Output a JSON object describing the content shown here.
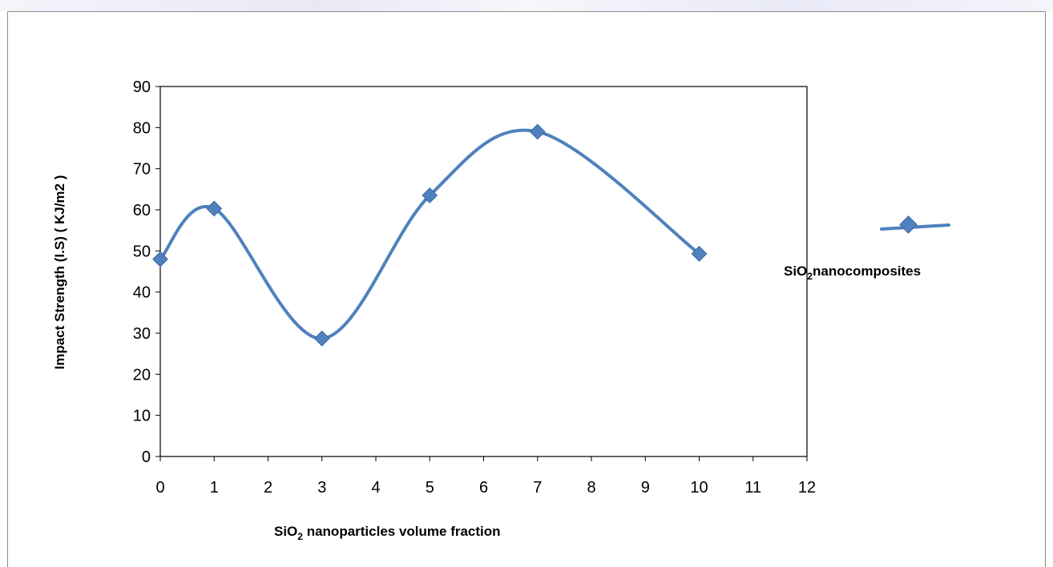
{
  "chart_data": {
    "type": "line",
    "smoothed": true,
    "xlabel": {
      "prefix": "SiO",
      "sub": "2",
      "suffix": " nanoparticles volume fraction"
    },
    "ylabel": "Impact Strength (I.S) ( KJ/m2 )",
    "xlim": [
      0,
      12
    ],
    "ylim": [
      0,
      90
    ],
    "x_ticks": [
      0,
      1,
      2,
      3,
      4,
      5,
      6,
      7,
      8,
      9,
      10,
      11,
      12
    ],
    "y_ticks": [
      0,
      10,
      20,
      30,
      40,
      50,
      60,
      70,
      80,
      90
    ],
    "grid": false,
    "legend_position": "right",
    "series": [
      {
        "name": {
          "prefix": "SiO",
          "sub": "2",
          "suffix": "nanocomposites"
        },
        "marker": "diamond",
        "color": "#4f81bd",
        "points": [
          {
            "x": 0,
            "y": 48
          },
          {
            "x": 1,
            "y": 60.3
          },
          {
            "x": 3,
            "y": 28.7
          },
          {
            "x": 5,
            "y": 63.5
          },
          {
            "x": 7,
            "y": 79
          },
          {
            "x": 10,
            "y": 49.3
          }
        ]
      }
    ]
  }
}
